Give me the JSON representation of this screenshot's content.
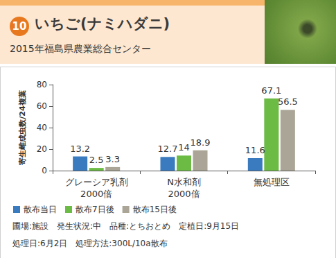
{
  "chart_data": {
    "type": "bar",
    "title_number": 10,
    "title": "いちご(ナミハダニ)",
    "subtitle": "2015年福島県農業総合センター",
    "y_label": "寄生雌成虫数/24複葉",
    "categories": [
      "グレーシア乳剤\n2000倍",
      "N水和剤\n2000倍",
      "無処理区"
    ],
    "series": [
      {
        "name": "散布当日",
        "color": "#3a7abf",
        "values": [
          13.2,
          12.7,
          11.6
        ]
      },
      {
        "name": "散布7日後",
        "color": "#6cbb45",
        "values": [
          2.5,
          14,
          67.1
        ]
      },
      {
        "name": "散布15日後",
        "color": "#aaa596",
        "values": [
          3.3,
          18.9,
          56.5
        ]
      }
    ],
    "ylim": [
      0,
      80
    ],
    "yticks": [
      0,
      20,
      40,
      60,
      80
    ],
    "grid": false,
    "data_labels": true,
    "legend": "bottom",
    "notes": [
      "圃場:施設　発生状況:中　品種:とちおとめ　定植日:9月15日",
      "処理日:6月2日　処理方法:300L/10a散布"
    ]
  }
}
